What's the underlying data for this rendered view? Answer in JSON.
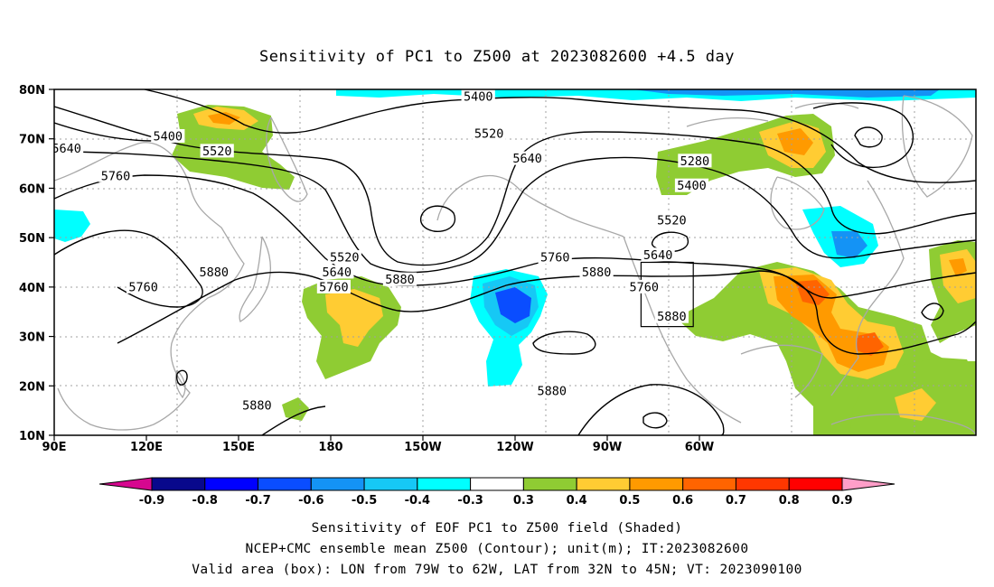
{
  "title": "Sensitivity of PC1 to Z500 at 2023082600 +4.5 day",
  "map": {
    "lat_ticks": [
      "80N",
      "70N",
      "60N",
      "50N",
      "40N",
      "30N",
      "20N",
      "10N"
    ],
    "lon_ticks": [
      "90E",
      "120E",
      "150E",
      "180",
      "150W",
      "120W",
      "90W",
      "60W"
    ],
    "contour_labels": [
      {
        "value": "5400",
        "lon": 127,
        "lat": 70.5
      },
      {
        "value": "5520",
        "lon": 143,
        "lat": 67.5
      },
      {
        "value": "5640",
        "lon": 94,
        "lat": 68
      },
      {
        "value": "5760",
        "lon": 110,
        "lat": 62.5
      },
      {
        "value": "5760",
        "lon": 119,
        "lat": 40
      },
      {
        "value": "5880",
        "lon": 142,
        "lat": 43
      },
      {
        "value": "5880",
        "lon": 156,
        "lat": 16
      },
      {
        "value": "5520",
        "lon": -175.5,
        "lat": 46
      },
      {
        "value": "5640",
        "lon": -178,
        "lat": 43
      },
      {
        "value": "5760",
        "lon": -179,
        "lat": 40
      },
      {
        "value": "5880",
        "lon": -157.5,
        "lat": 41.5
      },
      {
        "value": "5400",
        "lon": -132,
        "lat": 78.5
      },
      {
        "value": "5520",
        "lon": -128.5,
        "lat": 71
      },
      {
        "value": "5640",
        "lon": -116,
        "lat": 66
      },
      {
        "value": "5760",
        "lon": -107,
        "lat": 46
      },
      {
        "value": "5880",
        "lon": -93.5,
        "lat": 43
      },
      {
        "value": "5880",
        "lon": -108,
        "lat": 19
      },
      {
        "value": "5280",
        "lon": -61.5,
        "lat": 65.5
      },
      {
        "value": "5400",
        "lon": -62.5,
        "lat": 60.5
      },
      {
        "value": "5520",
        "lon": -69,
        "lat": 53.5
      },
      {
        "value": "5640",
        "lon": -73.5,
        "lat": 46.5
      },
      {
        "value": "5760",
        "lon": -78,
        "lat": 40
      },
      {
        "value": "5880",
        "lon": -69,
        "lat": 34
      }
    ],
    "valid_box": {
      "lon_min": -79,
      "lon_max": -62,
      "lat_min": 32,
      "lat_max": 45
    }
  },
  "colorbar": {
    "labels": [
      "-0.9",
      "-0.8",
      "-0.7",
      "-0.6",
      "-0.5",
      "-0.4",
      "-0.3",
      "0.3",
      "0.4",
      "0.5",
      "0.6",
      "0.7",
      "0.8",
      "0.9"
    ],
    "colors": [
      "#d6078f",
      "#08088c",
      "#0000ff",
      "#0a4dff",
      "#1493f5",
      "#16c8f5",
      "#00ffff",
      "#ffffff",
      "#8fcc33",
      "#ffcc33",
      "#ff9a00",
      "#ff6400",
      "#ff3700",
      "#ff0000",
      "#ff9ec8"
    ]
  },
  "caption": {
    "line1": "Sensitivity of EOF PC1 to Z500 field (Shaded)",
    "line2": "NCEP+CMC ensemble mean Z500 (Contour); unit(m); IT:2023082600",
    "line3": "Valid area (box): LON from 79W to 62W, LAT from 32N to 45N; VT: 2023090100"
  }
}
